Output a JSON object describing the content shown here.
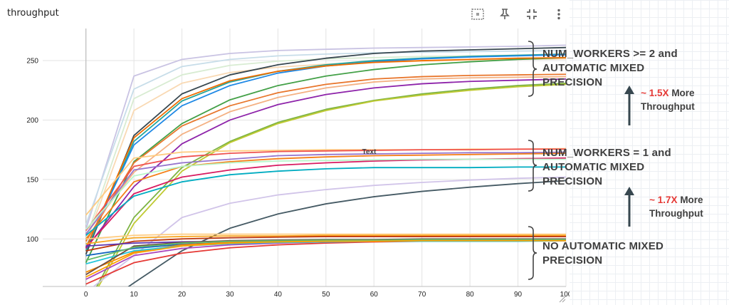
{
  "header": {
    "title": "throughput"
  },
  "toolbar": {
    "icons": [
      "fit-domain-icon",
      "pin-icon",
      "exit-fullscreen-icon",
      "more-vert-icon"
    ]
  },
  "chart_data": {
    "type": "line",
    "title": "throughput",
    "xlabel": "",
    "ylabel": "",
    "xlim": [
      -9,
      100
    ],
    "ylim": [
      60,
      277
    ],
    "xticks": [
      0,
      10,
      20,
      30,
      40,
      50,
      60,
      70,
      80,
      90,
      100
    ],
    "yticks": [
      100,
      150,
      200,
      250
    ],
    "grid": true,
    "x": [
      0,
      10,
      20,
      30,
      40,
      50,
      60,
      70,
      80,
      90,
      100
    ],
    "series": [
      {
        "color": "#c9c3e3",
        "values": [
          108,
          237,
          251,
          256,
          258.5,
          259.5,
          260.5,
          261,
          261.5,
          262,
          263
        ]
      },
      {
        "color": "#c7dde9",
        "values": [
          112,
          226,
          245,
          251,
          254,
          255.5,
          256.5,
          257,
          257.5,
          258,
          258.5
        ]
      },
      {
        "color": "#f9d9b3",
        "values": [
          97,
          208,
          231,
          240,
          244.5,
          247,
          248.5,
          249.5,
          250.5,
          251,
          251.5
        ]
      },
      {
        "color": "#d8ecd2",
        "values": [
          100,
          218,
          238,
          246,
          249.5,
          251.5,
          252.5,
          253.5,
          254,
          254.5,
          255
        ]
      },
      {
        "color": "#37474f",
        "values": [
          87,
          187,
          222,
          238,
          246.5,
          252,
          256,
          258,
          259,
          260,
          261
        ]
      },
      {
        "color": "#26a69a",
        "values": [
          90,
          182,
          216,
          232,
          241,
          246.5,
          250,
          252,
          253.5,
          254.5,
          255.5
        ]
      },
      {
        "color": "#1e88e5",
        "values": [
          93,
          179,
          212,
          229,
          239.5,
          245.5,
          249,
          251.5,
          253,
          254,
          255
        ]
      },
      {
        "color": "#43a047",
        "values": [
          80,
          165,
          197,
          217,
          229,
          237,
          242.5,
          246.5,
          249,
          251,
          252.5
        ]
      },
      {
        "color": "#ef6c00",
        "values": [
          92,
          185,
          218,
          233,
          241,
          245.5,
          248.5,
          250,
          251,
          252,
          252.5
        ]
      },
      {
        "color": "#e8762c",
        "values": [
          98,
          164,
          195,
          212,
          223,
          230,
          234.5,
          236.5,
          237.5,
          238,
          238.5
        ]
      },
      {
        "color": "#f4b183",
        "values": [
          104,
          156,
          188,
          207,
          219,
          227,
          232,
          234.5,
          235.5,
          236,
          236.5
        ]
      },
      {
        "color": "#8e24aa",
        "values": [
          92,
          144,
          180,
          200,
          213,
          221.5,
          227,
          230.5,
          232.5,
          233.5,
          234.5
        ]
      },
      {
        "color": "#7cb342",
        "values": [
          43,
          118,
          160,
          182,
          198,
          209,
          216.5,
          222,
          226,
          229,
          231
        ]
      },
      {
        "color": "#c0ca33",
        "values": [
          41,
          113,
          157,
          181,
          197,
          208,
          216,
          221,
          225,
          228,
          230
        ]
      },
      {
        "color": "#ffcc80",
        "values": [
          120,
          168,
          173,
          174,
          174.5,
          175,
          175,
          175,
          175.5,
          175.5,
          176
        ]
      },
      {
        "color": "#9575cd",
        "values": [
          104,
          158,
          164,
          167,
          170,
          171,
          171.5,
          172,
          172.5,
          172.5,
          173
        ]
      },
      {
        "color": "#ef5350",
        "values": [
          107,
          161,
          169,
          172,
          173.5,
          174,
          174.5,
          175,
          175,
          175.5,
          175.5
        ]
      },
      {
        "color": "#f57f17",
        "values": [
          100,
          148,
          161,
          165,
          167.5,
          169,
          170,
          170.5,
          171,
          171.5,
          172
        ]
      },
      {
        "color": "#d81b60",
        "values": [
          93,
          138,
          152,
          158,
          162,
          164,
          165.5,
          166.5,
          167,
          167.5,
          168
        ]
      },
      {
        "color": "#00acc1",
        "values": [
          103,
          136,
          148,
          154,
          157,
          159,
          160,
          160,
          160,
          160.5,
          160.5
        ]
      },
      {
        "color": "#b9f6ca",
        "values": [
          108,
          153,
          161,
          164,
          165.5,
          166,
          166.5,
          167,
          167,
          167,
          167
        ]
      },
      {
        "color": "#d1c4e9",
        "values": [
          55,
          86,
          118,
          130,
          137,
          141.5,
          145,
          147.5,
          149.5,
          151,
          152
        ]
      },
      {
        "color": "#455a64",
        "values": [
          35,
          63,
          90,
          109,
          121,
          129.5,
          135.5,
          140,
          143.5,
          146.5,
          149
        ]
      },
      {
        "color": "#f9a825",
        "values": [
          96,
          101,
          102,
          102.5,
          102.5,
          103,
          103,
          103,
          103,
          103,
          103
        ]
      },
      {
        "color": "#bf360c",
        "values": [
          90,
          98,
          100,
          101,
          101.5,
          102,
          102,
          102,
          102,
          102,
          102
        ]
      },
      {
        "color": "#5e35b1",
        "values": [
          94,
          96.5,
          97.5,
          98,
          98.5,
          98.5,
          99,
          99,
          99,
          99,
          99
        ]
      },
      {
        "color": "#1565c0",
        "values": [
          86,
          92,
          95.5,
          97,
          98,
          98.5,
          99,
          99,
          99,
          99,
          99
        ]
      },
      {
        "color": "#fb8c00",
        "values": [
          72,
          89,
          95,
          97,
          98,
          98.5,
          99,
          99,
          99,
          99,
          99
        ]
      },
      {
        "color": "#e53935",
        "values": [
          62,
          80,
          88,
          92.5,
          95,
          96.5,
          97.5,
          98,
          98,
          98.5,
          98.5
        ]
      },
      {
        "color": "#ab47bc",
        "values": [
          66,
          86,
          92,
          95,
          96.5,
          97.5,
          98,
          98,
          98.5,
          98.5,
          98.5
        ]
      },
      {
        "color": "#26c6da",
        "values": [
          79,
          90,
          94,
          96,
          97,
          97.5,
          98,
          98,
          98,
          98,
          98.5
        ]
      },
      {
        "color": "#6d4c41",
        "values": [
          70,
          94,
          97,
          98.5,
          99,
          99.5,
          99.5,
          100,
          100,
          100,
          100
        ]
      },
      {
        "color": "#ffcc80",
        "values": [
          100,
          103,
          104,
          104,
          104,
          104,
          104,
          104,
          104,
          104,
          104
        ]
      },
      {
        "color": "#66bb6a",
        "values": [
          82,
          93,
          96.5,
          98,
          98.5,
          99,
          99,
          99.5,
          99.5,
          99.5,
          99.5
        ]
      },
      {
        "color": "#ffa000",
        "values": [
          68,
          88,
          94,
          96.5,
          97.5,
          98,
          98,
          98.5,
          98.5,
          98.5,
          98.5
        ]
      }
    ],
    "annotations": [
      {
        "text": "Text",
        "x": 59,
        "y": 174
      }
    ]
  },
  "annotations": {
    "group1": [
      "NUM_WORKERS >= 2 and",
      "AUTOMATIC MIXED",
      "PRECISION"
    ],
    "group2": [
      "NUM_WORKERS = 1 and",
      "AUTOMATIC MIXED",
      "PRECISION"
    ],
    "group3": [
      "NO AUTOMATIC MIXED",
      "PRECISION"
    ],
    "speedup1": {
      "value": "~ 1.5X",
      "rest": "More",
      "line2": "Throughput"
    },
    "speedup2": {
      "value": "~ 1.7X",
      "rest": "More",
      "line2": "Throughput"
    }
  }
}
